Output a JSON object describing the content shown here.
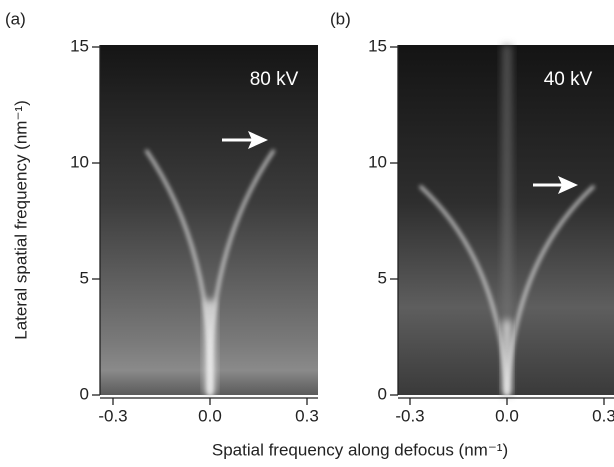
{
  "figure": {
    "panels": [
      {
        "label": "(a)",
        "annotation": "80 kV"
      },
      {
        "label": "(b)",
        "annotation": "40 kV"
      }
    ],
    "xlabel": "Spatial frequency along defocus (nm⁻¹)",
    "ylabel": "Lateral spatial frequency (nm⁻¹)",
    "xlim": [
      -0.3,
      0.3
    ],
    "ylim": [
      0,
      15
    ],
    "xticks": [
      {
        "value": -0.3,
        "label": "-0.3"
      },
      {
        "value": 0,
        "label": "0.0"
      },
      {
        "value": 0.3,
        "label": "0.3"
      }
    ],
    "yticks": [
      0,
      5,
      10,
      15
    ]
  }
}
